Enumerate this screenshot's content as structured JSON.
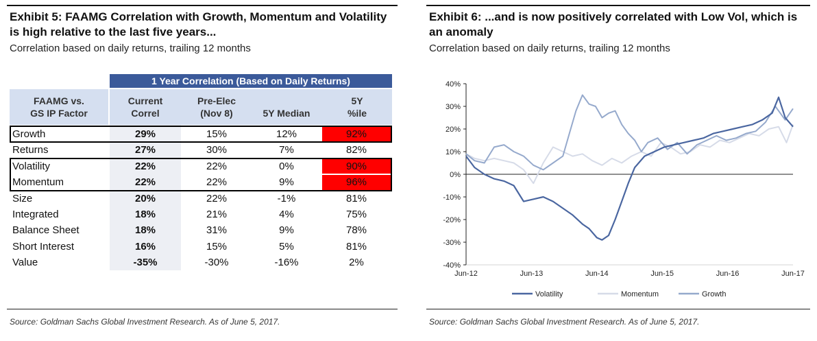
{
  "left": {
    "title": "Exhibit 5: FAAMG Correlation with Growth, Momentum and Volatility is high relative to the last five years...",
    "subtitle": "Correlation based on daily returns, trailing 12 months",
    "source": "Source: Goldman Sachs Global Investment Research. As of June 5, 2017."
  },
  "right": {
    "title": "Exhibit 6: ...and is now positively correlated with Low Vol, which is an anomaly",
    "subtitle": "Correlation based on daily returns, trailing 12 months",
    "source": "Source: Goldman Sachs Global Investment Research. As of June 5, 2017."
  },
  "colors": {
    "banner": "#3b5a9a",
    "header_bg": "#d5dff0",
    "highlight_red": "#ff0000",
    "volatility": "#4a66a0",
    "momentum": "#d6dbe8",
    "growth": "#95a9cc"
  },
  "chart_data": [
    {
      "type": "table",
      "banner": "1 Year Correlation (Based on Daily Returns)",
      "columns": [
        "FAAMG vs.\nGS IP Factor",
        "Current\nCorrel",
        "Pre-Elec\n(Nov 8)",
        "5Y Median",
        "5Y\n%ile"
      ],
      "rows": [
        {
          "factor": "Growth",
          "current": "29%",
          "pre_elec": "15%",
          "median": "12%",
          "pctile": "92%",
          "boxed": true,
          "pctile_red": true
        },
        {
          "factor": "Returns",
          "current": "27%",
          "pre_elec": "30%",
          "median": "7%",
          "pctile": "82%",
          "boxed": false,
          "pctile_red": false
        },
        {
          "factor": "Volatility",
          "current": "22%",
          "pre_elec": "22%",
          "median": "0%",
          "pctile": "90%",
          "boxed": true,
          "pctile_red": true
        },
        {
          "factor": "Momentum",
          "current": "22%",
          "pre_elec": "22%",
          "median": "9%",
          "pctile": "96%",
          "boxed": true,
          "pctile_red": true
        },
        {
          "factor": "Size",
          "current": "20%",
          "pre_elec": "22%",
          "median": "-1%",
          "pctile": "81%",
          "boxed": false,
          "pctile_red": false
        },
        {
          "factor": "Integrated",
          "current": "18%",
          "pre_elec": "21%",
          "median": "4%",
          "pctile": "75%",
          "boxed": false,
          "pctile_red": false
        },
        {
          "factor": "Balance Sheet",
          "current": "18%",
          "pre_elec": "31%",
          "median": "9%",
          "pctile": "78%",
          "boxed": false,
          "pctile_red": false
        },
        {
          "factor": "Short Interest",
          "current": "16%",
          "pre_elec": "15%",
          "median": "5%",
          "pctile": "81%",
          "boxed": false,
          "pctile_red": false
        },
        {
          "factor": "Value",
          "current": "-35%",
          "pre_elec": "-30%",
          "median": "-16%",
          "pctile": "2%",
          "boxed": false,
          "pctile_red": false
        }
      ]
    },
    {
      "type": "line",
      "x_ticks": [
        "Jun-12",
        "Jun-13",
        "Jun-14",
        "Jun-15",
        "Jun-16",
        "Jun-17"
      ],
      "y_ticks": [
        "40%",
        "30%",
        "20%",
        "10%",
        "0%",
        "-10%",
        "-20%",
        "-30%",
        "-40%"
      ],
      "ylim": [
        -40,
        40
      ],
      "xlim": [
        2012.42,
        2017.42
      ],
      "legend_position": "bottom",
      "grid": false,
      "series": [
        {
          "name": "Volatility",
          "x": [
            2012.42,
            2012.55,
            2012.7,
            2012.85,
            2013.0,
            2013.15,
            2013.3,
            2013.45,
            2013.6,
            2013.75,
            2013.9,
            2014.05,
            2014.2,
            2014.3,
            2014.42,
            2014.5,
            2014.6,
            2014.7,
            2014.8,
            2014.9,
            2015.0,
            2015.15,
            2015.3,
            2015.45,
            2015.6,
            2015.75,
            2015.9,
            2016.05,
            2016.2,
            2016.35,
            2016.5,
            2016.65,
            2016.8,
            2016.95,
            2017.1,
            2017.2,
            2017.3,
            2017.42
          ],
          "y": [
            8,
            3,
            0,
            -2,
            -3,
            -5,
            -12,
            -11,
            -10,
            -12,
            -15,
            -18,
            -22,
            -24,
            -28,
            -29,
            -27,
            -20,
            -12,
            -4,
            3,
            8,
            10,
            12,
            13,
            14,
            15,
            16,
            18,
            19,
            20,
            21,
            22,
            24,
            27,
            34,
            25,
            21
          ]
        },
        {
          "name": "Momentum",
          "x": [
            2012.42,
            2012.55,
            2012.7,
            2012.85,
            2013.0,
            2013.15,
            2013.3,
            2013.45,
            2013.6,
            2013.75,
            2013.9,
            2014.05,
            2014.2,
            2014.35,
            2014.5,
            2014.65,
            2014.8,
            2014.95,
            2015.1,
            2015.25,
            2015.4,
            2015.55,
            2015.7,
            2015.85,
            2016.0,
            2016.15,
            2016.3,
            2016.45,
            2016.6,
            2016.75,
            2016.9,
            2017.05,
            2017.2,
            2017.32,
            2017.42
          ],
          "y": [
            9,
            7,
            6,
            7,
            6,
            5,
            2,
            -4,
            5,
            12,
            10,
            8,
            9,
            6,
            4,
            7,
            5,
            8,
            10,
            8,
            14,
            12,
            9,
            10,
            13,
            12,
            15,
            14,
            16,
            18,
            17,
            20,
            21,
            14,
            22
          ]
        },
        {
          "name": "Growth",
          "x": [
            2012.42,
            2012.55,
            2012.7,
            2012.85,
            2013.0,
            2013.15,
            2013.3,
            2013.45,
            2013.6,
            2013.75,
            2013.9,
            2014.0,
            2014.1,
            2014.2,
            2014.3,
            2014.4,
            2014.5,
            2014.6,
            2014.7,
            2014.8,
            2014.9,
            2015.0,
            2015.1,
            2015.2,
            2015.35,
            2015.5,
            2015.65,
            2015.8,
            2015.95,
            2016.1,
            2016.25,
            2016.4,
            2016.55,
            2016.7,
            2016.85,
            2017.0,
            2017.15,
            2017.3,
            2017.42
          ],
          "y": [
            9,
            6,
            5,
            12,
            13,
            10,
            8,
            4,
            2,
            5,
            8,
            18,
            28,
            35,
            31,
            30,
            25,
            27,
            28,
            22,
            18,
            15,
            10,
            14,
            16,
            11,
            14,
            9,
            13,
            15,
            17,
            15,
            16,
            18,
            19,
            23,
            30,
            24,
            29
          ]
        }
      ]
    }
  ]
}
